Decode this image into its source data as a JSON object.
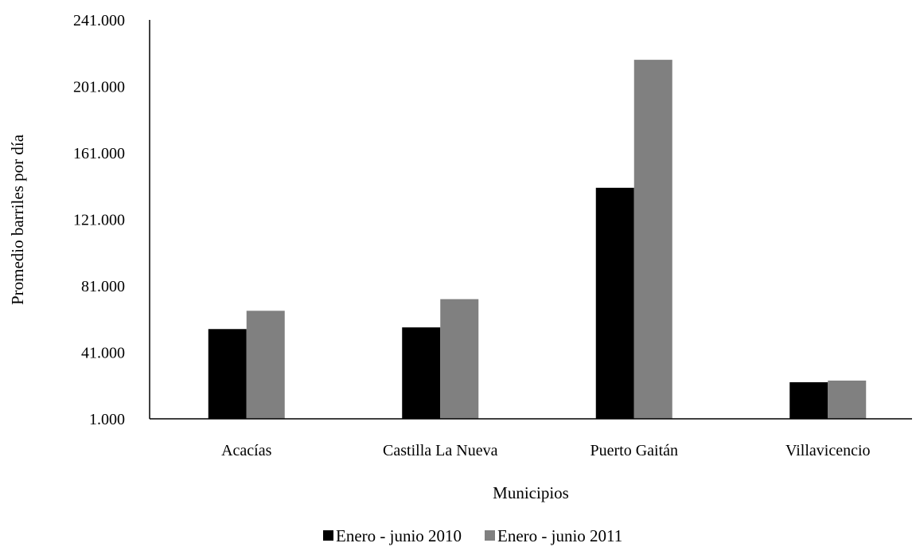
{
  "chart_data": {
    "type": "bar",
    "title": "",
    "xlabel": "Municipios",
    "ylabel": "Promedio barriles  por día",
    "categories": [
      "Acacías",
      "Castilla La Nueva",
      "Puerto Gaitán",
      "Villavicencio"
    ],
    "series": [
      {
        "name": "Enero - junio 2010",
        "color": "#000000",
        "values": [
          55000,
          56000,
          140000,
          23000
        ]
      },
      {
        "name": "Enero - junio 2011",
        "color": "#808080",
        "values": [
          66000,
          73000,
          217000,
          24000
        ]
      }
    ],
    "ylim": [
      1000,
      241000
    ],
    "yticks": [
      1000,
      41000,
      81000,
      121000,
      161000,
      201000,
      241000
    ],
    "ytick_labels": [
      "1.000",
      "41.000",
      "81.000",
      "121.000",
      "161.000",
      "201.000",
      "241.000"
    ],
    "grid": false,
    "legend_position": "bottom"
  }
}
